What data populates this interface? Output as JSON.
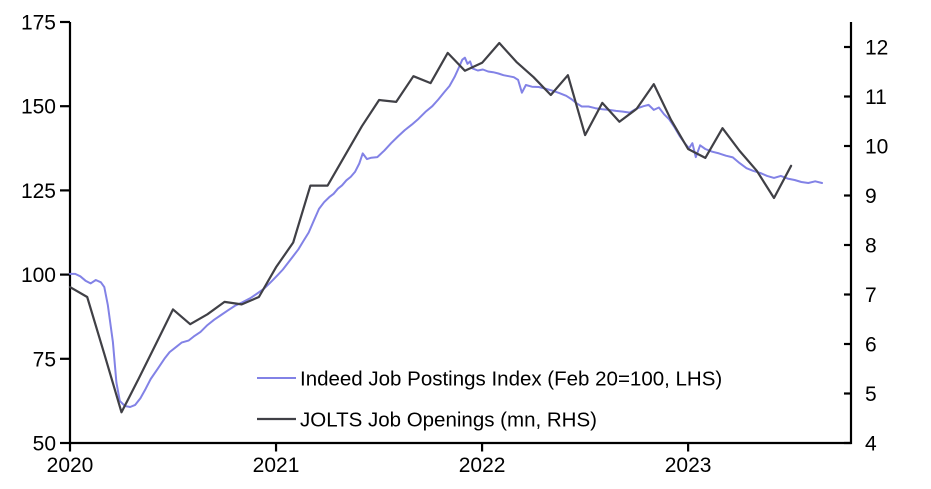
{
  "chart_data": {
    "type": "line",
    "title": "",
    "x_axis": {
      "tick_labels": [
        "2020",
        "2021",
        "2022",
        "2023"
      ],
      "tick_month_index": [
        0,
        12,
        24,
        36
      ],
      "months_per_year": 12
    },
    "left_axis": {
      "range": [
        50,
        175
      ],
      "ticks": [
        50,
        75,
        100,
        125,
        150,
        175
      ]
    },
    "right_axis": {
      "ticks": [
        4,
        5,
        6,
        7,
        8,
        9,
        10,
        11,
        12
      ],
      "tick_range": [
        4,
        12
      ]
    },
    "grid": "off",
    "legend_position": "inside-bottom-center",
    "series": [
      {
        "name": "Indeed Job Postings Index (Feb 20=100, LHS)",
        "axis": "left",
        "color": "#8282e6",
        "points_month_value": [
          [
            0,
            100.2
          ],
          [
            0.3,
            100.2
          ],
          [
            0.6,
            99.5
          ],
          [
            0.9,
            98.2
          ],
          [
            1.2,
            97.4
          ],
          [
            1.5,
            98.4
          ],
          [
            1.8,
            97.7
          ],
          [
            2.0,
            96.3
          ],
          [
            2.2,
            91.0
          ],
          [
            2.5,
            80.0
          ],
          [
            2.7,
            68.0
          ],
          [
            2.9,
            62.5
          ],
          [
            3.2,
            61.0
          ],
          [
            3.5,
            60.7
          ],
          [
            3.8,
            61.3
          ],
          [
            4.1,
            63.3
          ],
          [
            4.4,
            66.0
          ],
          [
            4.7,
            69.0
          ],
          [
            5.1,
            72.0
          ],
          [
            5.5,
            75.0
          ],
          [
            5.8,
            77.0
          ],
          [
            6.2,
            78.6
          ],
          [
            6.5,
            79.8
          ],
          [
            6.9,
            80.4
          ],
          [
            7.2,
            81.6
          ],
          [
            7.6,
            83.0
          ],
          [
            8.0,
            85.0
          ],
          [
            8.4,
            86.6
          ],
          [
            8.8,
            88.0
          ],
          [
            9.2,
            89.4
          ],
          [
            9.6,
            90.7
          ],
          [
            10.0,
            91.7
          ],
          [
            10.5,
            93.0
          ],
          [
            10.9,
            94.4
          ],
          [
            11.3,
            95.8
          ],
          [
            11.6,
            97.3
          ],
          [
            11.8,
            98.3
          ],
          [
            12.1,
            99.9
          ],
          [
            12.4,
            101.5
          ],
          [
            12.7,
            103.5
          ],
          [
            13.0,
            105.5
          ],
          [
            13.3,
            107.5
          ],
          [
            13.6,
            110.0
          ],
          [
            13.9,
            112.5
          ],
          [
            14.2,
            116.0
          ],
          [
            14.5,
            119.5
          ],
          [
            14.8,
            121.5
          ],
          [
            15.1,
            123.0
          ],
          [
            15.35,
            124.0
          ],
          [
            15.6,
            125.5
          ],
          [
            15.85,
            126.5
          ],
          [
            16.1,
            128.0
          ],
          [
            16.35,
            129.0
          ],
          [
            16.6,
            130.5
          ],
          [
            16.85,
            133.0
          ],
          [
            17.05,
            136.0
          ],
          [
            17.3,
            134.3
          ],
          [
            17.55,
            134.7
          ],
          [
            17.9,
            134.9
          ],
          [
            18.3,
            136.8
          ],
          [
            18.7,
            139.0
          ],
          [
            19.1,
            141.0
          ],
          [
            19.5,
            142.9
          ],
          [
            19.9,
            144.5
          ],
          [
            20.3,
            146.3
          ],
          [
            20.7,
            148.3
          ],
          [
            21.1,
            150.0
          ],
          [
            21.45,
            152.0
          ],
          [
            21.8,
            154.2
          ],
          [
            22.1,
            156.0
          ],
          [
            22.4,
            158.7
          ],
          [
            22.65,
            161.5
          ],
          [
            22.85,
            163.8
          ],
          [
            23.0,
            164.4
          ],
          [
            23.15,
            162.6
          ],
          [
            23.3,
            163.3
          ],
          [
            23.45,
            161.2
          ],
          [
            23.75,
            160.6
          ],
          [
            24.05,
            160.9
          ],
          [
            24.35,
            160.3
          ],
          [
            24.65,
            160.1
          ],
          [
            24.95,
            159.7
          ],
          [
            25.25,
            159.2
          ],
          [
            25.55,
            158.9
          ],
          [
            25.85,
            158.6
          ],
          [
            26.1,
            157.8
          ],
          [
            26.32,
            154.0
          ],
          [
            26.55,
            156.3
          ],
          [
            26.9,
            155.8
          ],
          [
            27.3,
            155.7
          ],
          [
            27.7,
            155.2
          ],
          [
            28.1,
            154.6
          ],
          [
            28.5,
            153.9
          ],
          [
            28.9,
            153.1
          ],
          [
            29.2,
            152.1
          ],
          [
            29.5,
            150.9
          ],
          [
            29.8,
            149.9
          ],
          [
            30.2,
            149.9
          ],
          [
            30.6,
            149.4
          ],
          [
            31.0,
            149.1
          ],
          [
            31.4,
            148.9
          ],
          [
            31.8,
            148.6
          ],
          [
            32.2,
            148.4
          ],
          [
            32.6,
            148.1
          ],
          [
            33.0,
            149.3
          ],
          [
            33.4,
            150.0
          ],
          [
            33.7,
            150.4
          ],
          [
            34.0,
            148.9
          ],
          [
            34.3,
            149.6
          ],
          [
            34.6,
            147.6
          ],
          [
            34.9,
            146.1
          ],
          [
            35.2,
            143.8
          ],
          [
            35.5,
            141.2
          ],
          [
            35.8,
            139.0
          ],
          [
            36.05,
            137.5
          ],
          [
            36.25,
            139.0
          ],
          [
            36.45,
            134.9
          ],
          [
            36.7,
            138.4
          ],
          [
            37.0,
            137.3
          ],
          [
            37.4,
            136.5
          ],
          [
            37.8,
            136.0
          ],
          [
            38.2,
            135.3
          ],
          [
            38.6,
            134.8
          ],
          [
            39.0,
            133.1
          ],
          [
            39.4,
            131.6
          ],
          [
            39.8,
            130.8
          ],
          [
            40.2,
            130.2
          ],
          [
            40.6,
            129.3
          ],
          [
            41.0,
            128.7
          ],
          [
            41.4,
            129.3
          ],
          [
            41.8,
            128.5
          ],
          [
            42.2,
            128.1
          ],
          [
            42.6,
            127.5
          ],
          [
            43.0,
            127.2
          ],
          [
            43.4,
            127.7
          ],
          [
            43.8,
            127.2
          ]
        ]
      },
      {
        "name": "JOLTS Job Openings (mn, RHS)",
        "axis": "right",
        "color": "#404046",
        "start_month_index": 0,
        "monthly_values": [
          7.15,
          6.95,
          5.8,
          4.62,
          5.3,
          6.0,
          6.7,
          6.4,
          6.6,
          6.85,
          6.8,
          6.95,
          7.55,
          8.05,
          9.2,
          9.2,
          9.8,
          10.4,
          10.93,
          10.89,
          11.41,
          11.27,
          11.88,
          11.52,
          11.68,
          12.08,
          11.7,
          11.39,
          11.03,
          11.43,
          10.22,
          10.87,
          10.49,
          10.75,
          11.25,
          10.53,
          9.94,
          9.76,
          10.36,
          9.9,
          9.5,
          8.95,
          9.6
        ]
      }
    ]
  },
  "colors": {
    "axis": "#000000",
    "background": "#ffffff",
    "indeed_line": "#8282e6",
    "jolts_line": "#404046"
  }
}
